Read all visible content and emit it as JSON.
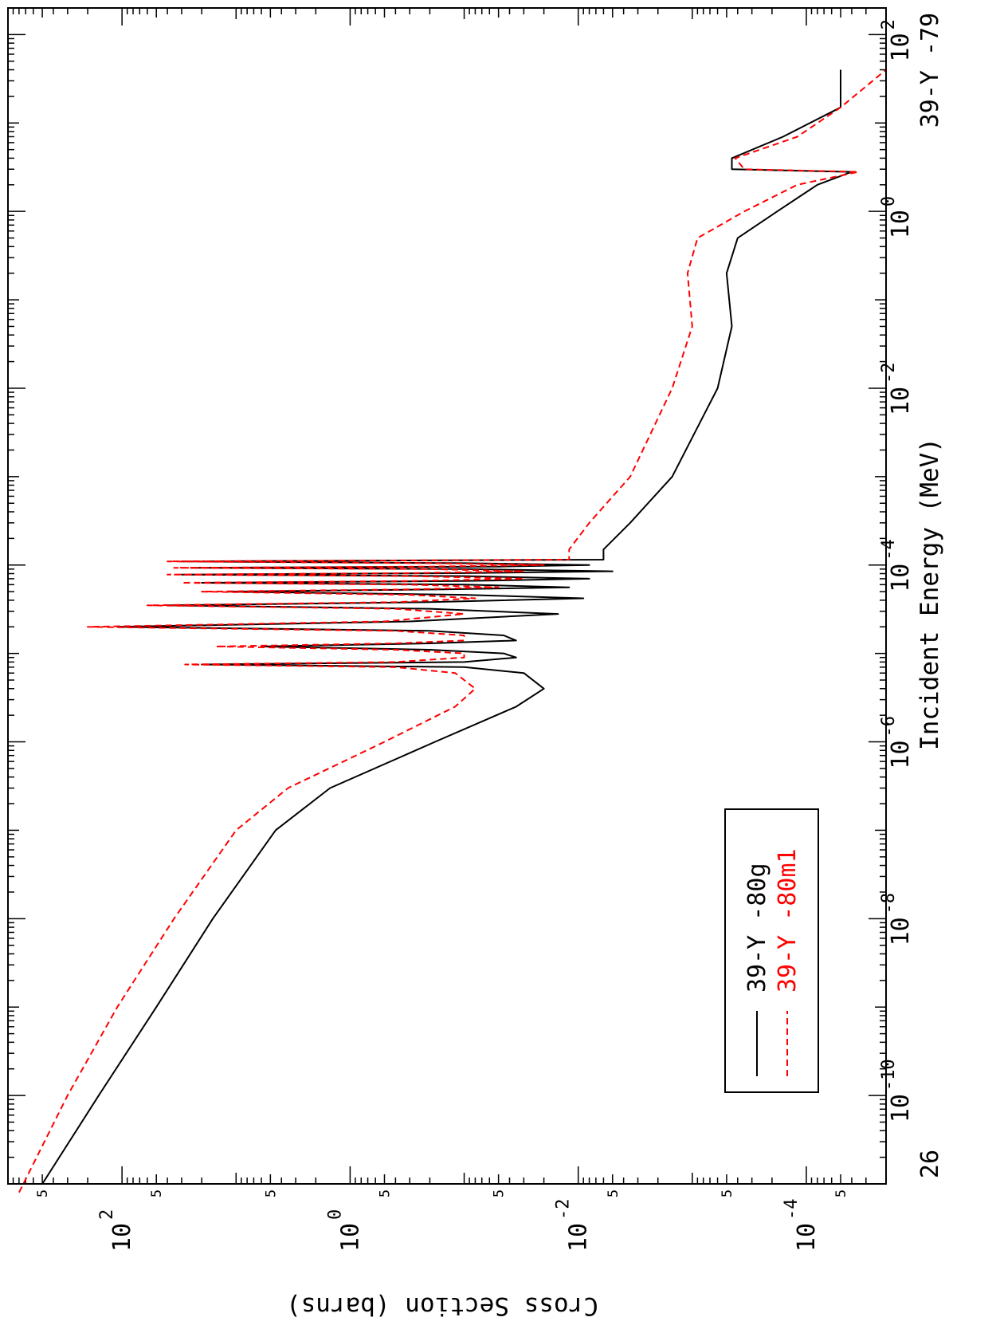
{
  "chart_data": {
    "type": "line",
    "orientation": "rotated-90-clockwise",
    "xlabel": "Incident Energy (MeV)",
    "ylabel": "Cross Section (barns)",
    "x_scale": "log",
    "y_scale": "log",
    "xlim": [
      1e-11,
      200
    ],
    "ylim": [
      2e-05,
      1000
    ],
    "x_tick_labels": [
      {
        "value": 1e-10,
        "base": "10",
        "exp": "-10"
      },
      {
        "value": 1e-08,
        "base": "10",
        "exp": "-8"
      },
      {
        "value": 1e-06,
        "base": "10",
        "exp": "-6"
      },
      {
        "value": 0.0001,
        "base": "10",
        "exp": "-4"
      },
      {
        "value": 0.01,
        "base": "10",
        "exp": "-2"
      },
      {
        "value": 1,
        "base": "10",
        "exp": "0"
      },
      {
        "value": 100,
        "base": "10",
        "exp": "2"
      }
    ],
    "y_tick_labels": [
      {
        "value": 100,
        "base": "10",
        "exp": "2"
      },
      {
        "value": 1,
        "base": "10",
        "exp": "0"
      },
      {
        "value": 0.01,
        "base": "10",
        "exp": "-2"
      },
      {
        "value": 0.0001,
        "base": "10",
        "exp": "-4"
      }
    ],
    "y_minor_label": "5",
    "corner_left": "26",
    "corner_right": "39-Y -79",
    "legend_position": "bottom-left",
    "grid": false,
    "series": [
      {
        "name": "39-Y -80g",
        "color": "#000000",
        "dash": "solid",
        "points": [
          [
            1e-11,
            500
          ],
          [
            1e-10,
            160
          ],
          [
            1e-09,
            50
          ],
          [
            1e-08,
            16
          ],
          [
            1e-07,
            4.5
          ],
          [
            3e-07,
            1.5
          ],
          [
            1e-06,
            0.18
          ],
          [
            2.5e-06,
            0.035
          ],
          [
            4e-06,
            0.02
          ],
          [
            6e-06,
            0.03
          ],
          [
            7e-06,
            0.1
          ],
          [
            7.5e-06,
            20
          ],
          [
            8e-06,
            0.1
          ],
          [
            9e-06,
            0.035
          ],
          [
            1e-05,
            0.045
          ],
          [
            1.1e-05,
            0.2
          ],
          [
            1.2e-05,
            6
          ],
          [
            1.3e-05,
            0.2
          ],
          [
            1.4e-05,
            0.035
          ],
          [
            1.6e-05,
            0.045
          ],
          [
            1.8e-05,
            0.2
          ],
          [
            2e-05,
            110
          ],
          [
            2.3e-05,
            0.3
          ],
          [
            2.8e-05,
            0.015
          ],
          [
            3.2e-05,
            0.2
          ],
          [
            3.5e-05,
            40
          ],
          [
            3.8e-05,
            0.2
          ],
          [
            4.2e-05,
            0.009
          ],
          [
            4.6e-05,
            0.1
          ],
          [
            5e-05,
            12
          ],
          [
            5.3e-05,
            0.15
          ],
          [
            5.6e-05,
            0.012
          ],
          [
            6e-05,
            0.1
          ],
          [
            6.3e-05,
            20
          ],
          [
            6.6e-05,
            0.1
          ],
          [
            7e-05,
            0.008
          ],
          [
            7.5e-05,
            0.1
          ],
          [
            7.8e-05,
            30
          ],
          [
            8.1e-05,
            0.1
          ],
          [
            8.5e-05,
            0.005
          ],
          [
            9e-05,
            0.1
          ],
          [
            9.3e-05,
            25
          ],
          [
            9.6e-05,
            0.05
          ],
          [
            0.0001,
            0.008
          ],
          [
            0.000105,
            0.1
          ],
          [
            0.00011,
            30
          ],
          [
            0.000115,
            0.006
          ],
          [
            0.00015,
            0.006
          ],
          [
            0.0003,
            0.0035
          ],
          [
            0.001,
            0.0015
          ],
          [
            0.01,
            0.0006
          ],
          [
            0.05,
            0.00045
          ],
          [
            0.2,
            0.0005
          ],
          [
            0.5,
            0.0004
          ],
          [
            1,
            0.00018
          ],
          [
            2,
            8e-05
          ],
          [
            2.8,
            4e-05
          ],
          [
            3,
            0.00045
          ],
          [
            4,
            0.00045
          ],
          [
            7,
            0.00016
          ],
          [
            15,
            5e-05
          ],
          [
            40,
            5e-05
          ]
        ]
      },
      {
        "name": "39-Y -80m1",
        "color": "#ff0000",
        "dash": "dashed",
        "points": [
          [
            8e-12,
            800
          ],
          [
            1e-10,
            300
          ],
          [
            1e-09,
            110
          ],
          [
            1e-08,
            35
          ],
          [
            1e-07,
            10
          ],
          [
            3e-07,
            3.5
          ],
          [
            1e-06,
            0.5
          ],
          [
            2.5e-06,
            0.12
          ],
          [
            4e-06,
            0.08
          ],
          [
            6e-06,
            0.12
          ],
          [
            7e-06,
            0.4
          ],
          [
            7.5e-06,
            28
          ],
          [
            8e-06,
            0.4
          ],
          [
            9e-06,
            0.1
          ],
          [
            1e-05,
            0.1
          ],
          [
            1.1e-05,
            0.4
          ],
          [
            1.2e-05,
            15
          ],
          [
            1.3e-05,
            0.4
          ],
          [
            1.4e-05,
            0.1
          ],
          [
            1.6e-05,
            0.1
          ],
          [
            1.8e-05,
            0.4
          ],
          [
            2e-05,
            200
          ],
          [
            2.3e-05,
            0.5
          ],
          [
            2.8e-05,
            0.1
          ],
          [
            3.2e-05,
            0.4
          ],
          [
            3.5e-05,
            60
          ],
          [
            3.8e-05,
            0.4
          ],
          [
            4.2e-05,
            0.08
          ],
          [
            4.6e-05,
            0.3
          ],
          [
            5e-05,
            20
          ],
          [
            5.3e-05,
            0.3
          ],
          [
            5.6e-05,
            0.05
          ],
          [
            6e-05,
            0.3
          ],
          [
            6.3e-05,
            30
          ],
          [
            6.6e-05,
            0.3
          ],
          [
            7e-05,
            0.03
          ],
          [
            7.5e-05,
            0.3
          ],
          [
            7.8e-05,
            40
          ],
          [
            8.1e-05,
            0.3
          ],
          [
            8.5e-05,
            0.03
          ],
          [
            9e-05,
            0.2
          ],
          [
            9.3e-05,
            35
          ],
          [
            9.6e-05,
            0.2
          ],
          [
            0.0001,
            0.02
          ],
          [
            0.000105,
            0.2
          ],
          [
            0.00011,
            40
          ],
          [
            0.000115,
            0.012
          ],
          [
            0.00015,
            0.012
          ],
          [
            0.0003,
            0.008
          ],
          [
            0.001,
            0.0035
          ],
          [
            0.01,
            0.0015
          ],
          [
            0.05,
            0.001
          ],
          [
            0.2,
            0.0011
          ],
          [
            0.5,
            0.0009
          ],
          [
            1,
            0.00035
          ],
          [
            2,
            0.00012
          ],
          [
            2.8,
            3.5e-05
          ],
          [
            3,
            0.00035
          ],
          [
            4,
            0.00042
          ],
          [
            7,
            0.00012
          ],
          [
            15,
            5e-05
          ],
          [
            40,
            2e-05
          ]
        ]
      }
    ]
  }
}
